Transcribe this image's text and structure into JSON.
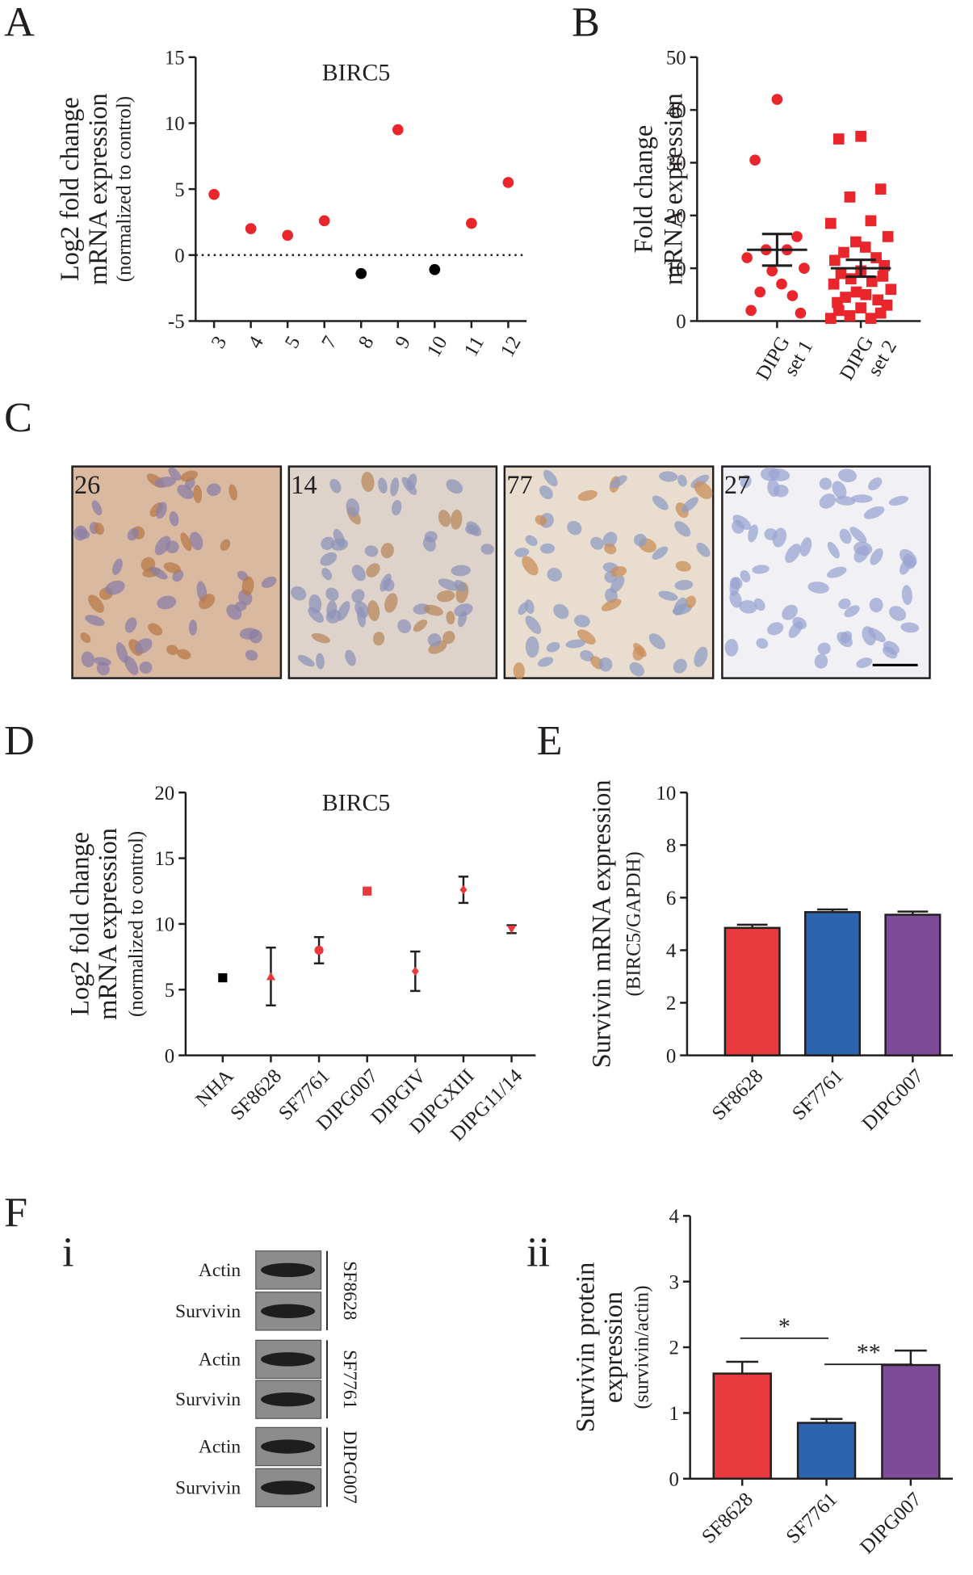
{
  "chart_data": [
    {
      "type": "scatter",
      "panel": "A",
      "title": "BIRC5",
      "ylabel": [
        "Log2 fold change",
        "mRNA expression",
        "(normalized to control)"
      ],
      "categories": [
        "3",
        "4",
        "5",
        "7",
        "8",
        "9",
        "10",
        "11",
        "12"
      ],
      "values": [
        4.6,
        2.0,
        1.5,
        2.6,
        -1.4,
        9.5,
        -1.1,
        2.4,
        5.5
      ],
      "colors": [
        "#e8262b",
        "#e8262b",
        "#e8262b",
        "#e8262b",
        "#000000",
        "#e8262b",
        "#000000",
        "#e8262b",
        "#e8262b"
      ],
      "ylim": [
        -5,
        15
      ],
      "yticks": [
        -5,
        0,
        5,
        10,
        15
      ],
      "hline": 0
    },
    {
      "type": "dot",
      "panel": "B",
      "ylabel": [
        "Fold change",
        "mRNA expression"
      ],
      "categories": [
        [
          "DIPG",
          "set 1"
        ],
        [
          "DIPG",
          "set 2"
        ]
      ],
      "groups": [
        {
          "values": [
            42,
            30.5,
            16,
            13.5,
            13.5,
            12,
            10,
            9.5,
            7,
            5.5,
            4.8,
            2,
            1.5
          ],
          "mean": 13.5,
          "sem": 3.0,
          "marker": "circle",
          "color": "#e8262b"
        },
        {
          "values": [
            35,
            34.5,
            25,
            23.5,
            19,
            18.5,
            16,
            15,
            14,
            13,
            12,
            11.5,
            10.5,
            9.5,
            9,
            8.5,
            8,
            7.5,
            7,
            6,
            5.5,
            5,
            4.5,
            4,
            3.5,
            3,
            2.5,
            2,
            1.5,
            1,
            0.5,
            0.5
          ],
          "mean": 10,
          "sem": 1.6,
          "marker": "square",
          "color": "#e8262b"
        }
      ],
      "ylim": [
        0,
        50
      ],
      "yticks": [
        0,
        10,
        20,
        30,
        40,
        50
      ]
    },
    {
      "type": "errorscatter",
      "panel": "D",
      "title": "BIRC5",
      "ylabel": [
        "Log2 fold change",
        "mRNA expression",
        "(normalized to control)"
      ],
      "categories": [
        "NHA",
        "SF8628",
        "SF7761",
        "DIPG007",
        "DIPGIV",
        "DIPGXIII",
        "DIPG11/14"
      ],
      "values": [
        5.9,
        6.0,
        8.0,
        12.5,
        6.4,
        12.6,
        9.6
      ],
      "errors": [
        0,
        2.2,
        1.0,
        0,
        1.5,
        1.0,
        0.3
      ],
      "markers": [
        "square",
        "triangle",
        "circle",
        "square",
        "diamond",
        "diamond",
        "triangle-down"
      ],
      "colors": [
        "#000000",
        "#e8393c",
        "#e8393c",
        "#e8393c",
        "#e8393c",
        "#e8393c",
        "#e8393c"
      ],
      "ylim": [
        0,
        20
      ],
      "yticks": [
        0,
        5,
        10,
        15,
        20
      ]
    },
    {
      "type": "bar",
      "panel": "E",
      "ylabel": [
        "Survivin mRNA expression",
        "(BIRC5/GAPDH)"
      ],
      "categories": [
        "SF8628",
        "SF7761",
        "DIPG007"
      ],
      "values": [
        4.85,
        5.45,
        5.35
      ],
      "errors": [
        0.12,
        0.1,
        0.12
      ],
      "colors": [
        "#e8393c",
        "#2e63ad",
        "#7d4b98"
      ],
      "ylim": [
        0,
        10
      ],
      "yticks": [
        0,
        2,
        4,
        6,
        8,
        10
      ]
    },
    {
      "type": "bar",
      "panel": "ii",
      "ylabel": [
        "Survivin protein",
        "expression",
        "(survivin/actin)"
      ],
      "categories": [
        "SF8628",
        "SF7761",
        "DIPG007"
      ],
      "values": [
        1.6,
        0.85,
        1.73
      ],
      "errors": [
        0.18,
        0.06,
        0.22
      ],
      "colors": [
        "#e8393c",
        "#2e63ad",
        "#7d4b98"
      ],
      "ylim": [
        0,
        4
      ],
      "yticks": [
        0,
        1,
        2,
        3,
        4
      ],
      "significance": [
        "*",
        "**"
      ]
    }
  ],
  "image_panel": {
    "panel": "C",
    "labels": [
      "26",
      "14",
      "77",
      "27"
    ]
  },
  "blot_panel": {
    "panel": "F",
    "subpanel": "i",
    "rows": [
      "Actin",
      "Survivin",
      "Actin",
      "Survivin",
      "Actin",
      "Survivin"
    ],
    "samples": [
      {
        "name": "SF8628",
        "color": "#d42a2a"
      },
      {
        "name": "SF7761",
        "color": "#3a3a9a"
      },
      {
        "name": "DIPG007",
        "color": "#7d3a98"
      }
    ]
  }
}
